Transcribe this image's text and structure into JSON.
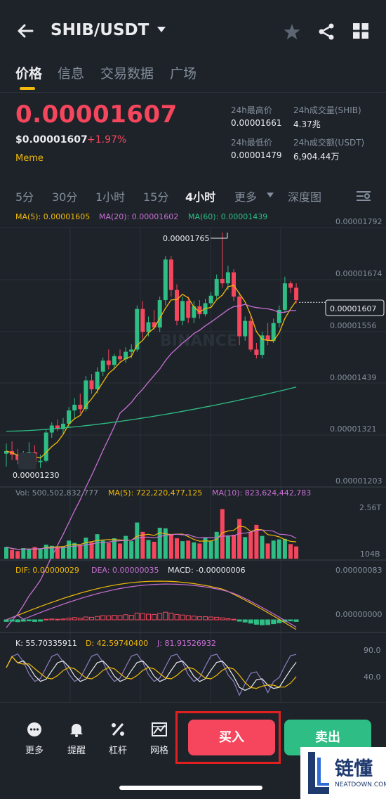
{
  "header": {
    "pair": "SHIB/USDT"
  },
  "tabs": [
    "价格",
    "信息",
    "交易数据",
    "广场"
  ],
  "price": {
    "last": "0.00001607",
    "usd": "$0.00001607",
    "change": "+1.97%",
    "tag": "Meme",
    "stats": {
      "high_label": "24h最高价",
      "high": "0.00001661",
      "low_label": "24h最低价",
      "low": "0.00001479",
      "vol_label": "24h成交量(SHIB)",
      "vol": "4.37兆",
      "amt_label": "24h成交额(USDT)",
      "amt": "6,904.44万"
    }
  },
  "intervals": [
    "5分",
    "30分",
    "1小时",
    "15分",
    "4小时",
    "更多",
    "深度图"
  ],
  "ma": {
    "ma5": "MA(5): 0.00001605",
    "ma20": "MA(20): 0.00001602",
    "ma60": "MA(60): 0.00001439"
  },
  "axis": [
    "0.00001792",
    "0.00001674",
    "0.00001556",
    "0.00001439",
    "0.00001321",
    "0.00001203"
  ],
  "chart_labels": {
    "high": "0.00001765",
    "low": "0.00001230",
    "current": "0.00001607",
    "watermark": "BINANCE"
  },
  "volume": {
    "vol": "Vol: 500,502,832,777",
    "ma5": "MA(5): 722,220,477,125",
    "ma10": "MA(10): 823,624,442,783",
    "top": "2.56T",
    "bottom": "104B"
  },
  "macd": {
    "dif": "DIF: 0.00000029",
    "dea": "DEA: 0.00000035",
    "macd": "MACD: -0.00000006",
    "top": "0.00000083",
    "mid": "0.00000000"
  },
  "kdj": {
    "k": "K: 55.70335911",
    "d": "D: 42.59740400",
    "j": "J: 81.91526932",
    "top": "90.0",
    "mid": "40.0"
  },
  "bottom_nav": {
    "more": "更多",
    "alert": "提醒",
    "leverage": "杠杆",
    "grid": "网格",
    "buy": "买入",
    "sell": "卖出"
  },
  "watermark": {
    "text": "链懂",
    "sub": "NEATDOWN.COM"
  },
  "colors": {
    "up": "#2ebd85",
    "down": "#f6465d",
    "accent": "#f0b90b",
    "bg": "#1e2329"
  },
  "chart_data": {
    "type": "candlestick",
    "ylim": [
      1.203e-05,
      1.792e-05
    ],
    "candles": [
      {
        "o": 1.264e-05,
        "h": 1.287e-05,
        "l": 1.235e-05,
        "c": 1.27e-05
      },
      {
        "o": 1.27e-05,
        "h": 1.292e-05,
        "l": 1.25e-05,
        "c": 1.262e-05
      },
      {
        "o": 1.262e-05,
        "h": 1.275e-05,
        "l": 1.24e-05,
        "c": 1.25e-05
      },
      {
        "o": 1.25e-05,
        "h": 1.27e-05,
        "l": 1.231e-05,
        "c": 1.26e-05
      },
      {
        "o": 1.26e-05,
        "h": 1.29e-05,
        "l": 1.245e-05,
        "c": 1.268e-05
      },
      {
        "o": 1.268e-05,
        "h": 1.283e-05,
        "l": 1.23e-05,
        "c": 1.245e-05
      },
      {
        "o": 1.245e-05,
        "h": 1.262e-05,
        "l": 1.232e-05,
        "c": 1.248e-05
      },
      {
        "o": 1.248e-05,
        "h": 1.32e-05,
        "l": 1.244e-05,
        "c": 1.312e-05
      },
      {
        "o": 1.312e-05,
        "h": 1.335e-05,
        "l": 1.3e-05,
        "c": 1.328e-05
      },
      {
        "o": 1.328e-05,
        "h": 1.342e-05,
        "l": 1.315e-05,
        "c": 1.32e-05
      },
      {
        "o": 1.32e-05,
        "h": 1.345e-05,
        "l": 1.31e-05,
        "c": 1.332e-05
      },
      {
        "o": 1.332e-05,
        "h": 1.37e-05,
        "l": 1.325e-05,
        "c": 1.362e-05
      },
      {
        "o": 1.362e-05,
        "h": 1.39e-05,
        "l": 1.345e-05,
        "c": 1.375e-05
      },
      {
        "o": 1.375e-05,
        "h": 1.4e-05,
        "l": 1.355e-05,
        "c": 1.365e-05
      },
      {
        "o": 1.365e-05,
        "h": 1.44e-05,
        "l": 1.36e-05,
        "c": 1.43e-05
      },
      {
        "o": 1.43e-05,
        "h": 1.445e-05,
        "l": 1.4e-05,
        "c": 1.41e-05
      },
      {
        "o": 1.41e-05,
        "h": 1.46e-05,
        "l": 1.4e-05,
        "c": 1.45e-05
      },
      {
        "o": 1.45e-05,
        "h": 1.482e-05,
        "l": 1.44e-05,
        "c": 1.475e-05
      },
      {
        "o": 1.475e-05,
        "h": 1.5e-05,
        "l": 1.455e-05,
        "c": 1.465e-05
      },
      {
        "o": 1.465e-05,
        "h": 1.49e-05,
        "l": 1.455e-05,
        "c": 1.485e-05
      },
      {
        "o": 1.485e-05,
        "h": 1.5e-05,
        "l": 1.47e-05,
        "c": 1.478e-05
      },
      {
        "o": 1.478e-05,
        "h": 1.505e-05,
        "l": 1.47e-05,
        "c": 1.495e-05
      },
      {
        "o": 1.495e-05,
        "h": 1.512e-05,
        "l": 1.48e-05,
        "c": 1.5e-05
      },
      {
        "o": 1.5e-05,
        "h": 1.6e-05,
        "l": 1.495e-05,
        "c": 1.592e-05
      },
      {
        "o": 1.592e-05,
        "h": 1.61e-05,
        "l": 1.525e-05,
        "c": 1.54e-05
      },
      {
        "o": 1.54e-05,
        "h": 1.575e-05,
        "l": 1.53e-05,
        "c": 1.562e-05
      },
      {
        "o": 1.562e-05,
        "h": 1.59e-05,
        "l": 1.545e-05,
        "c": 1.55e-05
      },
      {
        "o": 1.55e-05,
        "h": 1.62e-05,
        "l": 1.54e-05,
        "c": 1.612e-05
      },
      {
        "o": 1.612e-05,
        "h": 1.712e-05,
        "l": 1.6e-05,
        "c": 1.704e-05
      },
      {
        "o": 1.704e-05,
        "h": 1.712e-05,
        "l": 1.62e-05,
        "c": 1.635e-05
      },
      {
        "o": 1.635e-05,
        "h": 1.648e-05,
        "l": 1.555e-05,
        "c": 1.565e-05
      },
      {
        "o": 1.565e-05,
        "h": 1.62e-05,
        "l": 1.555e-05,
        "c": 1.61e-05
      },
      {
        "o": 1.61e-05,
        "h": 1.62e-05,
        "l": 1.56e-05,
        "c": 1.572e-05
      },
      {
        "o": 1.572e-05,
        "h": 1.61e-05,
        "l": 1.56e-05,
        "c": 1.598e-05
      },
      {
        "o": 1.598e-05,
        "h": 1.612e-05,
        "l": 1.57e-05,
        "c": 1.58e-05
      },
      {
        "o": 1.58e-05,
        "h": 1.615e-05,
        "l": 1.575e-05,
        "c": 1.605e-05
      },
      {
        "o": 1.605e-05,
        "h": 1.63e-05,
        "l": 1.595e-05,
        "c": 1.622e-05
      },
      {
        "o": 1.622e-05,
        "h": 1.67e-05,
        "l": 1.615e-05,
        "c": 1.66e-05
      },
      {
        "o": 1.66e-05,
        "h": 1.765e-05,
        "l": 1.64e-05,
        "c": 1.65e-05
      },
      {
        "o": 1.65e-05,
        "h": 1.69e-05,
        "l": 1.635e-05,
        "c": 1.675e-05
      },
      {
        "o": 1.675e-05,
        "h": 1.682e-05,
        "l": 1.61e-05,
        "c": 1.62e-05
      },
      {
        "o": 1.62e-05,
        "h": 1.63e-05,
        "l": 1.51e-05,
        "c": 1.53e-05
      },
      {
        "o": 1.53e-05,
        "h": 1.575e-05,
        "l": 1.52e-05,
        "c": 1.565e-05
      },
      {
        "o": 1.565e-05,
        "h": 1.575e-05,
        "l": 1.495e-05,
        "c": 1.5e-05
      },
      {
        "o": 1.5e-05,
        "h": 1.515e-05,
        "l": 1.48e-05,
        "c": 1.488e-05
      },
      {
        "o": 1.488e-05,
        "h": 1.54e-05,
        "l": 1.48e-05,
        "c": 1.532e-05
      },
      {
        "o": 1.532e-05,
        "h": 1.56e-05,
        "l": 1.51e-05,
        "c": 1.52e-05
      },
      {
        "o": 1.52e-05,
        "h": 1.57e-05,
        "l": 1.515e-05,
        "c": 1.56e-05
      },
      {
        "o": 1.56e-05,
        "h": 1.6e-05,
        "l": 1.55e-05,
        "c": 1.59e-05
      },
      {
        "o": 1.59e-05,
        "h": 1.665e-05,
        "l": 1.585e-05,
        "c": 1.65e-05
      },
      {
        "o": 1.65e-05,
        "h": 1.655e-05,
        "l": 1.628e-05,
        "c": 1.64e-05
      },
      {
        "o": 1.64e-05,
        "h": 1.65e-05,
        "l": 1.605e-05,
        "c": 1.612e-05
      }
    ],
    "volume": [
      0.2,
      0.15,
      0.13,
      0.18,
      0.16,
      0.2,
      0.17,
      0.24,
      0.22,
      0.19,
      0.21,
      0.31,
      0.27,
      0.23,
      0.36,
      0.28,
      0.42,
      0.31,
      0.27,
      0.35,
      0.26,
      0.39,
      0.3,
      0.62,
      0.46,
      0.32,
      0.29,
      0.53,
      0.52,
      0.41,
      0.35,
      0.3,
      0.31,
      0.28,
      0.26,
      0.36,
      0.3,
      0.46,
      0.85,
      0.4,
      0.41,
      0.68,
      0.37,
      0.46,
      0.58,
      0.39,
      0.26,
      0.31,
      0.33,
      0.34,
      0.25,
      0.21
    ],
    "macd_hist": [
      -0.06,
      -0.05,
      -0.07,
      -0.05,
      -0.04,
      -0.06,
      -0.05,
      0.02,
      0.03,
      0.02,
      0.03,
      0.06,
      0.08,
      0.06,
      0.1,
      0.09,
      0.12,
      0.15,
      0.14,
      0.16,
      0.15,
      0.18,
      0.16,
      0.24,
      0.22,
      0.2,
      0.19,
      0.23,
      0.27,
      0.24,
      0.19,
      0.17,
      0.15,
      0.13,
      0.11,
      0.11,
      0.1,
      0.09,
      0.07,
      0.04,
      0.02,
      -0.05,
      -0.08,
      -0.12,
      -0.16,
      -0.18,
      -0.17,
      -0.14,
      -0.11,
      -0.07,
      -0.04,
      -0.06
    ]
  }
}
